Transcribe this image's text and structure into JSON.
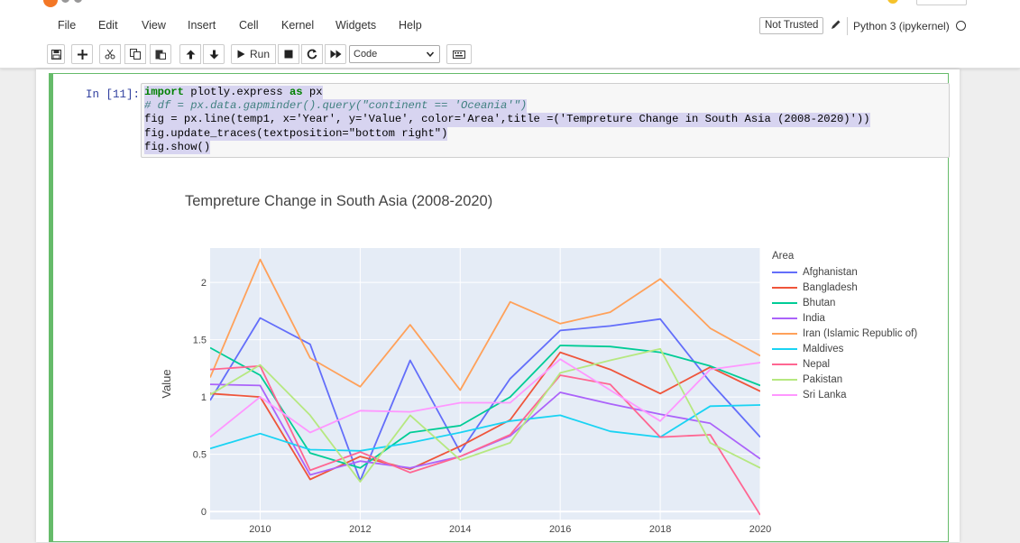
{
  "menubar": {
    "items": [
      "File",
      "Edit",
      "View",
      "Insert",
      "Cell",
      "Kernel",
      "Widgets",
      "Help"
    ],
    "trust_label": "Not Trusted",
    "kernel_name": "Python 3 (ipykernel)"
  },
  "toolbar": {
    "run_label": "Run",
    "cell_type": "Code",
    "icons": [
      "save-icon",
      "plus-icon",
      "cut-icon",
      "copy-icon",
      "paste-icon",
      "arrow-up-icon",
      "arrow-down-icon",
      "play-icon",
      "stop-icon",
      "restart-icon",
      "fast-forward-icon",
      "keyboard-icon"
    ]
  },
  "cell": {
    "prompt": "In [11]:",
    "code_lines": [
      "import plotly.express as px",
      "# df = px.data.gapminder().query(\"continent == 'Oceania'\")",
      "fig = px.line(temp1, x='Year', y='Value', color='Area',title =('Tempreture Change in South Asia (2008-2020)'))",
      "fig.update_traces(textposition=\"bottom right\")",
      "fig.show()"
    ]
  },
  "colors": {
    "cell_border": "#66bb6a",
    "plot_bg": "#e5ecf6",
    "prompt": "#303f9f"
  },
  "chart_data": {
    "type": "line",
    "title": "Tempreture Change in South Asia (2008-2020)",
    "xlabel": "",
    "ylabel": "Value",
    "legend_title": "Area",
    "legend_position": "right",
    "grid": true,
    "xlim": [
      2009,
      2020
    ],
    "ylim": [
      -0.07,
      2.3
    ],
    "x_ticks": [
      2010,
      2012,
      2014,
      2016,
      2018,
      2020
    ],
    "y_ticks": [
      0,
      0.5,
      1,
      1.5,
      2
    ],
    "y_tick_labels": [
      "0",
      "0.5",
      "1",
      "1.5",
      "2"
    ],
    "x": [
      2009,
      2010,
      2011,
      2012,
      2013,
      2014,
      2015,
      2016,
      2017,
      2018,
      2019,
      2020
    ],
    "series": [
      {
        "name": "Afghanistan",
        "color": "#636efa",
        "values": [
          0.97,
          1.69,
          1.46,
          0.27,
          1.32,
          0.52,
          1.16,
          1.58,
          1.62,
          1.68,
          1.13,
          0.65
        ]
      },
      {
        "name": "Bangladesh",
        "color": "#ef553b",
        "values": [
          1.03,
          1.0,
          0.28,
          0.48,
          0.37,
          0.57,
          0.8,
          1.39,
          1.24,
          1.03,
          1.26,
          1.05
        ]
      },
      {
        "name": "Bhutan",
        "color": "#00cc96",
        "values": [
          1.43,
          1.19,
          0.51,
          0.38,
          0.69,
          0.75,
          1.0,
          1.45,
          1.44,
          1.39,
          1.27,
          1.1
        ]
      },
      {
        "name": "India",
        "color": "#ab63fa",
        "values": [
          1.11,
          1.1,
          0.32,
          0.44,
          0.38,
          0.48,
          0.66,
          1.04,
          0.94,
          0.85,
          0.77,
          0.46
        ]
      },
      {
        "name": "Iran (Islamic Republic of)",
        "color": "#ffa15a",
        "values": [
          1.17,
          2.2,
          1.34,
          1.09,
          1.63,
          1.06,
          1.83,
          1.64,
          1.74,
          2.03,
          1.6,
          1.36
        ]
      },
      {
        "name": "Maldives",
        "color": "#19d3f3",
        "values": [
          0.55,
          0.68,
          0.54,
          0.53,
          0.6,
          0.69,
          0.79,
          0.84,
          0.7,
          0.65,
          0.92,
          0.93
        ]
      },
      {
        "name": "Nepal",
        "color": "#ff6692",
        "values": [
          1.24,
          1.27,
          0.36,
          0.52,
          0.34,
          0.48,
          0.67,
          1.19,
          1.11,
          0.65,
          0.67,
          -0.03
        ]
      },
      {
        "name": "Pakistan",
        "color": "#b6e880",
        "values": [
          1.02,
          1.28,
          0.84,
          0.26,
          0.84,
          0.45,
          0.6,
          1.21,
          1.32,
          1.42,
          0.6,
          0.38
        ]
      },
      {
        "name": "Sri Lanka",
        "color": "#ff97ff",
        "values": [
          0.65,
          1.0,
          0.69,
          0.88,
          0.87,
          0.95,
          0.95,
          1.33,
          1.06,
          0.79,
          1.24,
          1.3
        ]
      }
    ]
  }
}
